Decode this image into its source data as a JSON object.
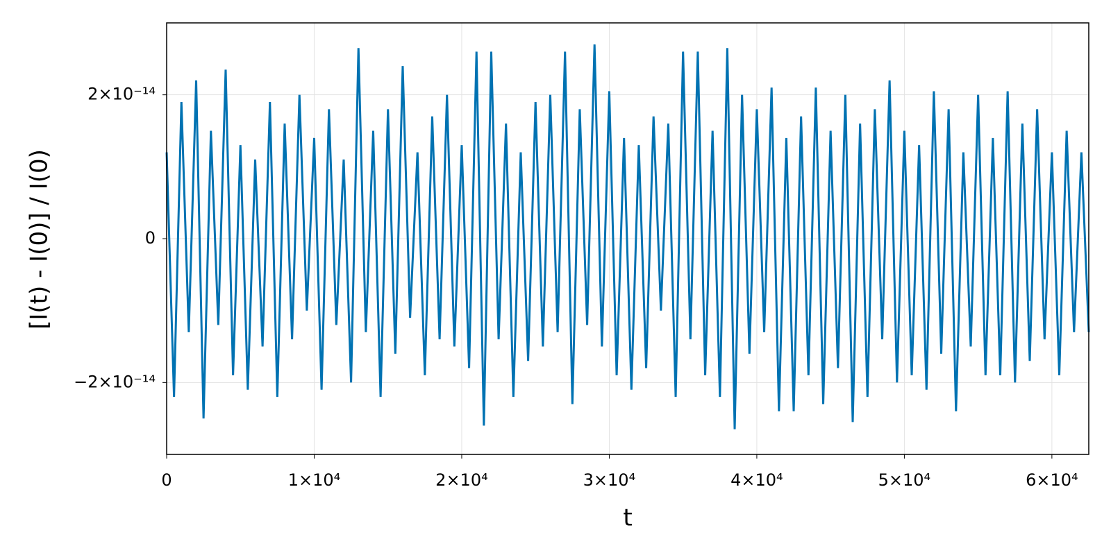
{
  "chart_data": {
    "type": "line",
    "xlabel": "t",
    "ylabel": "[I(t) - I(0)] / I(0)",
    "x": [
      0,
      500,
      1000,
      1500,
      2000,
      2500,
      3000,
      3500,
      4000,
      4500,
      5000,
      5500,
      6000,
      6500,
      7000,
      7500,
      8000,
      8500,
      9000,
      9500,
      10000,
      10500,
      11000,
      11500,
      12000,
      12500,
      13000,
      13500,
      14000,
      14500,
      15000,
      15500,
      16000,
      16500,
      17000,
      17500,
      18000,
      18500,
      19000,
      19500,
      20000,
      20500,
      21000,
      21500,
      22000,
      22500,
      23000,
      23500,
      24000,
      24500,
      25000,
      25500,
      26000,
      26500,
      27000,
      27500,
      28000,
      28500,
      29000,
      29500,
      30000,
      30500,
      31000,
      31500,
      32000,
      32500,
      33000,
      33500,
      34000,
      34500,
      35000,
      35500,
      36000,
      36500,
      37000,
      37500,
      38000,
      38500,
      39000,
      39500,
      40000,
      40500,
      41000,
      41500,
      42000,
      42500,
      43000,
      43500,
      44000,
      44500,
      45000,
      45500,
      46000,
      46500,
      47000,
      47500,
      48000,
      48500,
      49000,
      49500,
      50000,
      50500,
      51000,
      51500,
      52000,
      52500,
      53000,
      53500,
      54000,
      54500,
      55000,
      55500,
      56000,
      56500,
      57000,
      57500,
      58000,
      58500,
      59000,
      59500,
      60000,
      60500,
      61000,
      61500,
      62000,
      62500
    ],
    "series": [
      {
        "color": "#0072b2",
        "values": [
          1.2e-14,
          -2.2e-14,
          1.9e-14,
          -1.3e-14,
          2.2e-14,
          -2.5e-14,
          1.5e-14,
          -1.2e-14,
          2.35e-14,
          -1.9e-14,
          1.3e-14,
          -2.1e-14,
          1.1e-14,
          -1.5e-14,
          1.9e-14,
          -2.2e-14,
          1.6e-14,
          -1.4e-14,
          2e-14,
          -1e-14,
          1.4e-14,
          -2.1e-14,
          1.8e-14,
          -1.2e-14,
          1.1e-14,
          -2e-14,
          2.65e-14,
          -1.3e-14,
          1.5e-14,
          -2.2e-14,
          1.8e-14,
          -1.6e-14,
          2.4e-14,
          -1.1e-14,
          1.2e-14,
          -1.9e-14,
          1.7e-14,
          -1.4e-14,
          2e-14,
          -1.5e-14,
          1.3e-14,
          -1.8e-14,
          2.6e-14,
          -2.6e-14,
          2.6e-14,
          -1.4e-14,
          1.6e-14,
          -2.2e-14,
          1.2e-14,
          -1.7e-14,
          1.9e-14,
          -1.5e-14,
          2e-14,
          -1.3e-14,
          2.6e-14,
          -2.3e-14,
          1.8e-14,
          -1.2e-14,
          2.7e-14,
          -1.5e-14,
          2.05e-14,
          -1.9e-14,
          1.4e-14,
          -2.1e-14,
          1.3e-14,
          -1.8e-14,
          1.7e-14,
          -1e-14,
          1.6e-14,
          -2.2e-14,
          2.6e-14,
          -1.4e-14,
          2.6e-14,
          -1.9e-14,
          1.5e-14,
          -2.2e-14,
          2.65e-14,
          -2.65e-14,
          2e-14,
          -1.6e-14,
          1.8e-14,
          -1.3e-14,
          2.1e-14,
          -2.4e-14,
          1.4e-14,
          -2.4e-14,
          1.7e-14,
          -1.9e-14,
          2.1e-14,
          -2.3e-14,
          1.5e-14,
          -1.8e-14,
          2e-14,
          -2.55e-14,
          1.6e-14,
          -2.2e-14,
          1.8e-14,
          -1.4e-14,
          2.2e-14,
          -2e-14,
          1.5e-14,
          -1.9e-14,
          1.3e-14,
          -2.1e-14,
          2.05e-14,
          -1.6e-14,
          1.8e-14,
          -2.4e-14,
          1.2e-14,
          -1.5e-14,
          2e-14,
          -1.9e-14,
          1.4e-14,
          -1.9e-14,
          2.05e-14,
          -2e-14,
          1.6e-14,
          -1.7e-14,
          1.8e-14,
          -1.4e-14,
          1.2e-14,
          -1.9e-14,
          1.5e-14,
          -1.3e-14,
          1.2e-14,
          -1.3e-14
        ]
      }
    ],
    "xlim": [
      0,
      62500
    ],
    "ylim": [
      -3e-14,
      3e-14
    ],
    "xticks": [
      0,
      {
        "value": 10000,
        "label": "1×10⁴"
      },
      {
        "value": 20000,
        "label": "2×10⁴"
      },
      {
        "value": 30000,
        "label": "3×10⁴"
      },
      {
        "value": 40000,
        "label": "4×10⁴"
      },
      {
        "value": 50000,
        "label": "5×10⁴"
      },
      {
        "value": 60000,
        "label": "6×10⁴"
      }
    ],
    "yticks": [
      {
        "value": -2e-14,
        "label": "−2×10⁻¹⁴"
      },
      0,
      {
        "value": 2e-14,
        "label": "2×10⁻¹⁴"
      }
    ],
    "grid": true
  }
}
